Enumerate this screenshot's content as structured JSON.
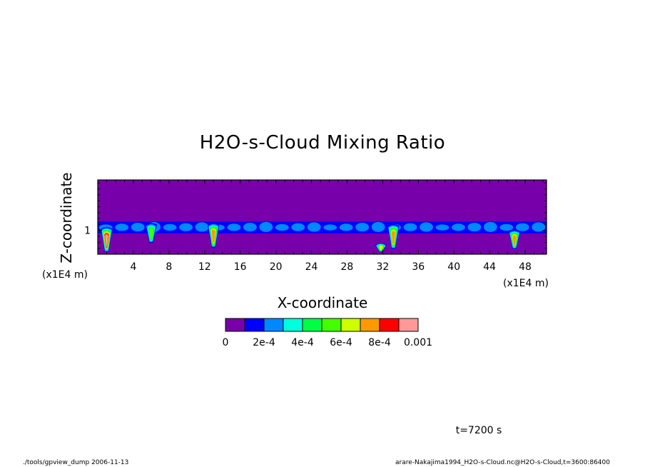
{
  "chart_data": {
    "type": "heatmap",
    "title": "H2O-s-Cloud Mixing Ratio",
    "xlabel": "X-coordinate",
    "ylabel": "Z-coordinate",
    "x_unit": "(x1E4 m)",
    "y_unit": "(x1E4 m)",
    "x_ticks": [
      4,
      8,
      12,
      16,
      20,
      24,
      28,
      32,
      36,
      40,
      44,
      48
    ],
    "xlim": [
      0,
      50.4
    ],
    "y_ticks": [
      1
    ],
    "ylim": [
      0.6,
      1.85
    ],
    "time_label": "t=7200 s",
    "colorbar": {
      "levels": [
        0,
        0.0001,
        0.0002,
        0.0003,
        0.0004,
        0.0005,
        0.0006,
        0.0007,
        0.0008,
        0.0009,
        0.001
      ],
      "tick_labels": [
        "0",
        "2e-4",
        "4e-4",
        "6e-4",
        "8e-4",
        "0.001"
      ],
      "colors": [
        "#7700aa",
        "#0000ff",
        "#0088ff",
        "#00ffdd",
        "#00ff44",
        "#44ff00",
        "#ccff00",
        "#ff9900",
        "#ff0000",
        "#ff9999"
      ]
    },
    "background_color": "#7700aa",
    "cloud_layer_z_range": [
      0.95,
      1.15
    ],
    "features": [
      {
        "x": 1.0,
        "z_top": 1.05,
        "z_bottom": 0.65,
        "max_level": 9
      },
      {
        "x": 6.0,
        "z_top": 1.12,
        "z_bottom": 0.8,
        "max_level": 5
      },
      {
        "x": 13.0,
        "z_top": 1.12,
        "z_bottom": 0.72,
        "max_level": 7
      },
      {
        "x": 33.2,
        "z_top": 1.1,
        "z_bottom": 0.7,
        "max_level": 7
      },
      {
        "x": 31.8,
        "z_top": 0.78,
        "z_bottom": 0.65,
        "max_level": 6
      },
      {
        "x": 46.8,
        "z_top": 1.0,
        "z_bottom": 0.7,
        "max_level": 7
      }
    ]
  },
  "footer": {
    "left": "./tools/gpview_dump  2006-11-13",
    "right": "arare-Nakajima1994_H2O-s-Cloud.nc@H2O-s-Cloud,t=3600:86400"
  }
}
